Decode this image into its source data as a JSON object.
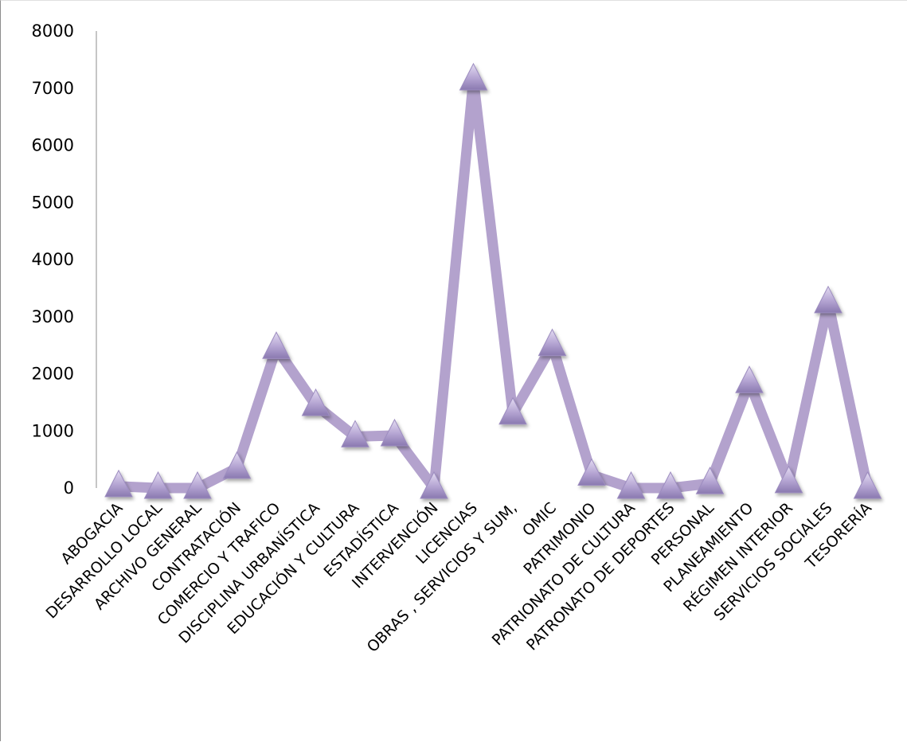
{
  "chart_data": {
    "type": "line",
    "title": "",
    "xlabel": "",
    "ylabel": "",
    "categories": [
      "ABOGACIA",
      "DESARROLLO LOCAL",
      "ARCHIVO GENERAL",
      "CONTRATACIÓN",
      "COMERCIO Y TRAFICO",
      "DISCIPLINA URBANÍSTICA",
      "EDUCACIÓN Y CULTURA",
      "ESTADÍSTICA",
      "INTERVENCIÓN",
      "LICENCIAS",
      "OBRAS , SERVICIOS Y SUM,",
      "OMIC",
      "PATRIMONIO",
      "PATRIONATO DE CULTURA",
      "PATRONATO DE DEPORTES",
      "PERSONAL",
      "PLANEAMIENTO",
      "RÉGIMEN INTERIOR",
      "SERVICIOS SOCIALES",
      "TESORERÍA"
    ],
    "series": [
      {
        "values": [
          30,
          0,
          0,
          350,
          2450,
          1450,
          900,
          920,
          0,
          7150,
          1300,
          2500,
          230,
          0,
          0,
          80,
          1850,
          100,
          3250,
          0
        ]
      }
    ],
    "ylim": [
      0,
      8000
    ],
    "yticks": [
      0,
      1000,
      2000,
      3000,
      4000,
      5000,
      6000,
      7000,
      8000
    ],
    "grid": false,
    "legend": "none",
    "line_color": "#b3a2cd",
    "marker": "triangle",
    "marker_color": "#a797c6"
  }
}
